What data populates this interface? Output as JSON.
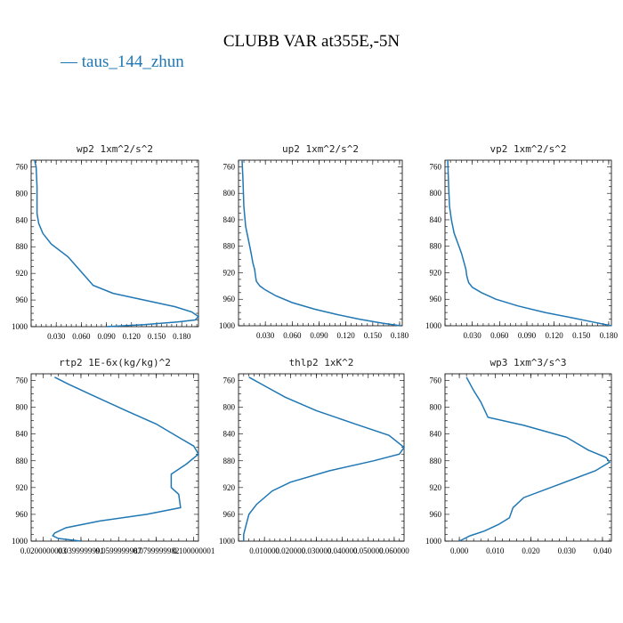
{
  "title": "CLUBB VAR at355E,-5N",
  "legend": [
    {
      "label": "taus_144_zhun",
      "color": "#1f77b4"
    }
  ],
  "chart_data": [
    {
      "type": "line",
      "title": "wp2  1xm^2/s^2",
      "xlim": [
        0,
        0.2
      ],
      "ylim": [
        1000,
        750
      ],
      "xticks": [
        0.03,
        0.06,
        0.09,
        0.12,
        0.15,
        0.18
      ],
      "xtick_labels": [
        "0.030",
        "0.060",
        "0.090",
        "0.120",
        "0.150",
        "0.180"
      ],
      "yticks": [
        760,
        800,
        840,
        880,
        920,
        960,
        1000
      ],
      "series": [
        {
          "x": [
            0.004,
            0.006,
            0.007,
            0.007,
            0.009,
            0.014,
            0.024,
            0.044,
            0.058,
            0.065,
            0.074,
            0.098,
            0.135,
            0.172,
            0.192,
            0.2,
            0.196,
            0.175,
            0.135,
            0.09
          ],
          "y": [
            750,
            760,
            790,
            830,
            845,
            860,
            876,
            895,
            915,
            925,
            938,
            950,
            960,
            970,
            978,
            985,
            990,
            993,
            997,
            1000
          ]
        }
      ]
    },
    {
      "type": "line",
      "title": "up2  1xm^2/s^2",
      "xlim": [
        0,
        0.183
      ],
      "ylim": [
        1000,
        750
      ],
      "xticks": [
        0.03,
        0.06,
        0.09,
        0.12,
        0.15,
        0.18
      ],
      "xtick_labels": [
        "0.030",
        "0.060",
        "0.090",
        "0.120",
        "0.150",
        "0.180"
      ],
      "yticks": [
        760,
        800,
        840,
        880,
        920,
        960,
        1000
      ],
      "series": [
        {
          "x": [
            0.004,
            0.005,
            0.006,
            0.008,
            0.011,
            0.014,
            0.016,
            0.018,
            0.019,
            0.02,
            0.024,
            0.03,
            0.042,
            0.06,
            0.085,
            0.11,
            0.135,
            0.16,
            0.181
          ],
          "y": [
            750,
            780,
            820,
            850,
            870,
            890,
            905,
            915,
            925,
            933,
            940,
            946,
            955,
            965,
            975,
            983,
            990,
            996,
            1000
          ]
        }
      ]
    },
    {
      "type": "line",
      "title": "vp2  1xm^2/s^2",
      "xlim": [
        0,
        0.183
      ],
      "ylim": [
        1000,
        750
      ],
      "xticks": [
        0.03,
        0.06,
        0.09,
        0.12,
        0.15,
        0.18
      ],
      "xtick_labels": [
        "0.030",
        "0.060",
        "0.090",
        "0.120",
        "0.150",
        "0.180"
      ],
      "yticks": [
        760,
        800,
        840,
        880,
        920,
        960,
        1000
      ],
      "series": [
        {
          "x": [
            0.003,
            0.004,
            0.005,
            0.007,
            0.01,
            0.014,
            0.018,
            0.021,
            0.023,
            0.024,
            0.026,
            0.03,
            0.04,
            0.056,
            0.08,
            0.11,
            0.14,
            0.165,
            0.183
          ],
          "y": [
            750,
            790,
            820,
            840,
            860,
            875,
            890,
            905,
            915,
            925,
            935,
            942,
            950,
            960,
            970,
            980,
            988,
            995,
            1000
          ]
        }
      ]
    },
    {
      "type": "line",
      "title": "rtp2  1E-6x(kg/kg)^2",
      "xlim": [
        0.0135,
        0.1025
      ],
      "ylim": [
        1000,
        750
      ],
      "xticks": [
        0.02,
        0.04,
        0.06,
        0.08,
        0.1
      ],
      "xtick_labels": [
        "0.0200000003",
        "0.0399999991",
        "0.0599999987",
        "0.0799999982",
        "0.100000001"
      ],
      "yticks": [
        760,
        800,
        840,
        880,
        920,
        960,
        1000
      ],
      "series": [
        {
          "x": [
            0.026,
            0.033,
            0.046,
            0.064,
            0.08,
            0.092,
            0.1,
            0.103,
            0.096,
            0.088,
            0.088,
            0.092,
            0.093,
            0.075,
            0.05,
            0.032,
            0.026,
            0.025,
            0.028,
            0.04
          ],
          "y": [
            755,
            765,
            782,
            805,
            825,
            845,
            858,
            870,
            885,
            900,
            920,
            930,
            950,
            960,
            970,
            980,
            988,
            992,
            996,
            1000
          ]
        }
      ]
    },
    {
      "type": "line",
      "title": "thlp2  1xK^2",
      "xlim": [
        0,
        0.0638
      ],
      "ylim": [
        1000,
        750
      ],
      "xticks": [
        0.01,
        0.02,
        0.03,
        0.04,
        0.05,
        0.06
      ],
      "xtick_labels": [
        "0.010000",
        "0.020000",
        "0.030000",
        "0.040000",
        "0.050000",
        "0.060000"
      ],
      "yticks": [
        760,
        800,
        840,
        880,
        920,
        960,
        1000
      ],
      "series": [
        {
          "x": [
            0.004,
            0.01,
            0.018,
            0.03,
            0.045,
            0.058,
            0.064,
            0.062,
            0.052,
            0.035,
            0.02,
            0.013,
            0.007,
            0.004,
            0.003,
            0.002,
            0.002
          ],
          "y": [
            755,
            768,
            785,
            805,
            825,
            842,
            860,
            870,
            880,
            895,
            912,
            925,
            945,
            960,
            975,
            990,
            1000
          ]
        }
      ]
    },
    {
      "type": "line",
      "title": "wp3  1xm^3/s^3",
      "xlim": [
        -0.004,
        0.0425
      ],
      "ylim": [
        1000,
        750
      ],
      "xticks": [
        0.0,
        0.01,
        0.02,
        0.03,
        0.04
      ],
      "xtick_labels": [
        "0.000",
        "0.010",
        "0.020",
        "0.030",
        "0.040"
      ],
      "yticks": [
        760,
        800,
        840,
        880,
        920,
        960,
        1000
      ],
      "series": [
        {
          "x": [
            0.002,
            0.004,
            0.006,
            0.008,
            0.018,
            0.03,
            0.036,
            0.041,
            0.042,
            0.038,
            0.028,
            0.018,
            0.015,
            0.014,
            0.011,
            0.007,
            0.003,
            0.0
          ],
          "y": [
            755,
            775,
            792,
            815,
            827,
            845,
            864,
            875,
            882,
            895,
            915,
            935,
            950,
            965,
            975,
            985,
            992,
            1000
          ]
        }
      ]
    }
  ]
}
